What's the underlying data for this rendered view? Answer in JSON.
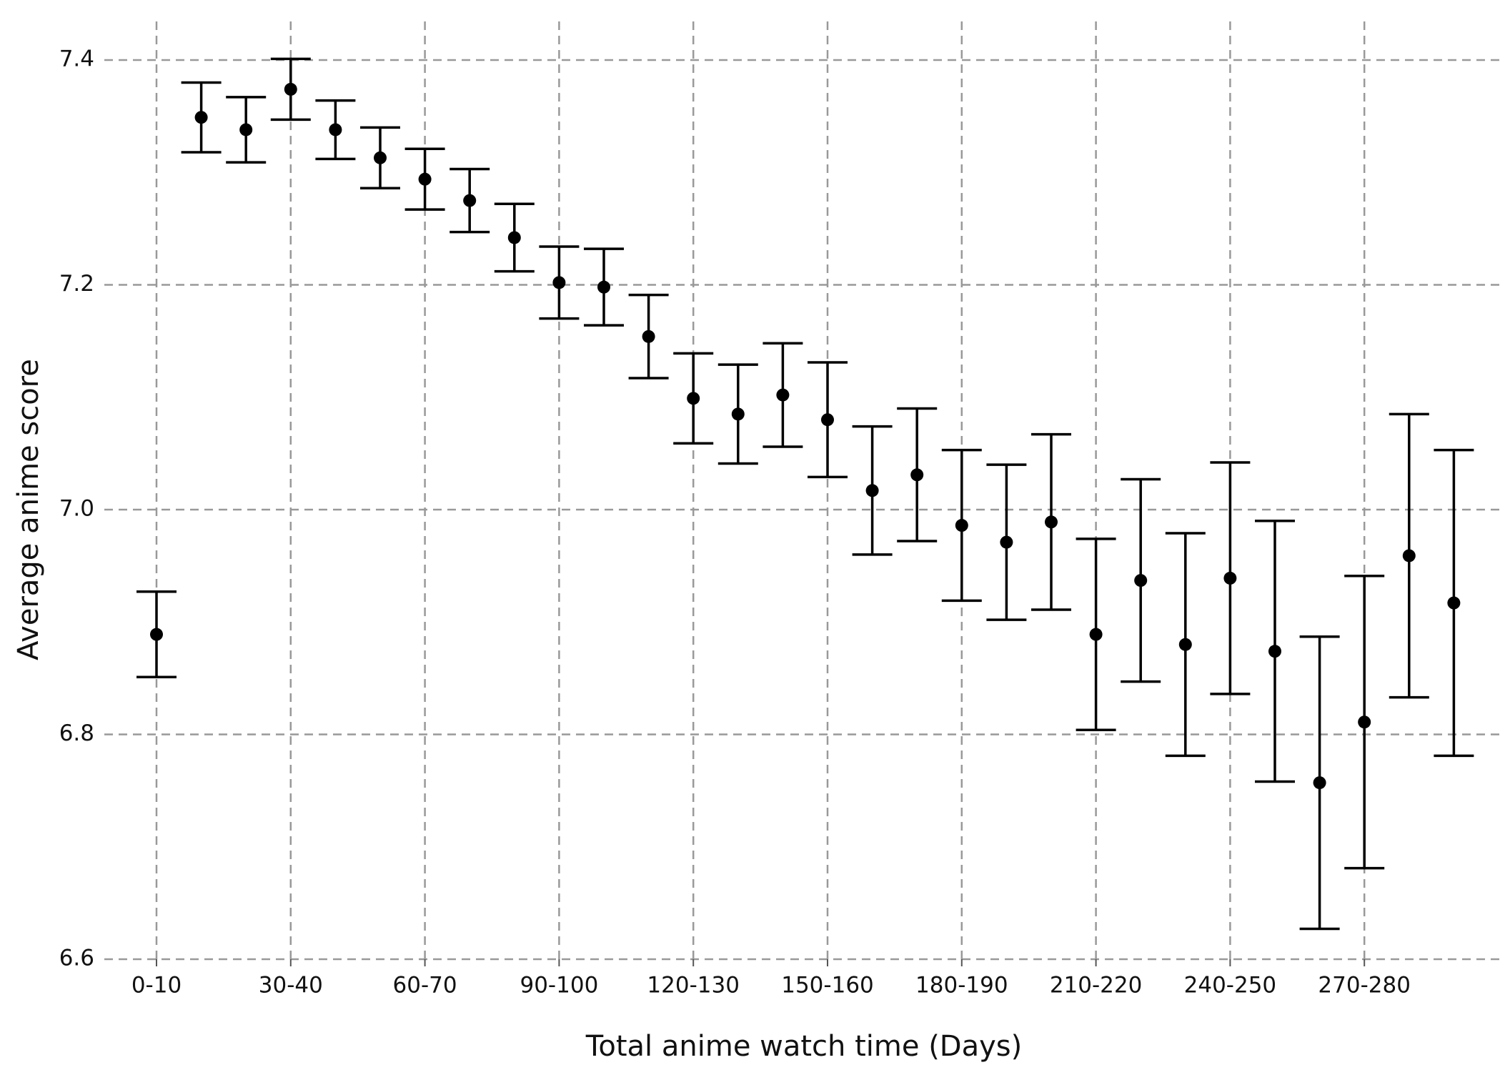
{
  "chart_data": {
    "type": "errorbar",
    "xlabel": "Total anime watch time (Days)",
    "ylabel": "Average anime score",
    "categories": [
      "0-10",
      null,
      null,
      "30-40",
      null,
      null,
      "60-70",
      null,
      null,
      "90-100",
      null,
      null,
      "120-130",
      null,
      null,
      "150-160",
      null,
      null,
      "180-190",
      null,
      null,
      "210-220",
      null,
      null,
      "240-250",
      null,
      null,
      "270-280",
      null,
      null
    ],
    "series": [
      {
        "color": "#000000",
        "values": [
          6.889,
          7.349,
          7.338,
          7.374,
          7.338,
          7.313,
          7.294,
          7.275,
          7.242,
          7.202,
          7.198,
          7.154,
          7.099,
          7.085,
          7.102,
          7.08,
          7.017,
          7.031,
          6.986,
          6.971,
          6.989,
          6.889,
          6.937,
          6.88,
          6.939,
          6.874,
          6.757,
          6.811,
          6.959,
          6.917
        ],
        "errors": [
          0.038,
          0.031,
          0.029,
          0.027,
          0.026,
          0.027,
          0.027,
          0.028,
          0.03,
          0.032,
          0.034,
          0.037,
          0.04,
          0.044,
          0.046,
          0.051,
          0.057,
          0.059,
          0.067,
          0.069,
          0.078,
          0.085,
          0.09,
          0.099,
          0.103,
          0.116,
          0.13,
          0.13,
          0.126,
          0.136
        ]
      }
    ],
    "ylim": [
      6.6,
      7.4
    ],
    "yticks": [
      6.6,
      6.8,
      {
        "value": 7,
        "label": "7.0"
      },
      7.2,
      7.4
    ],
    "grid": true
  }
}
